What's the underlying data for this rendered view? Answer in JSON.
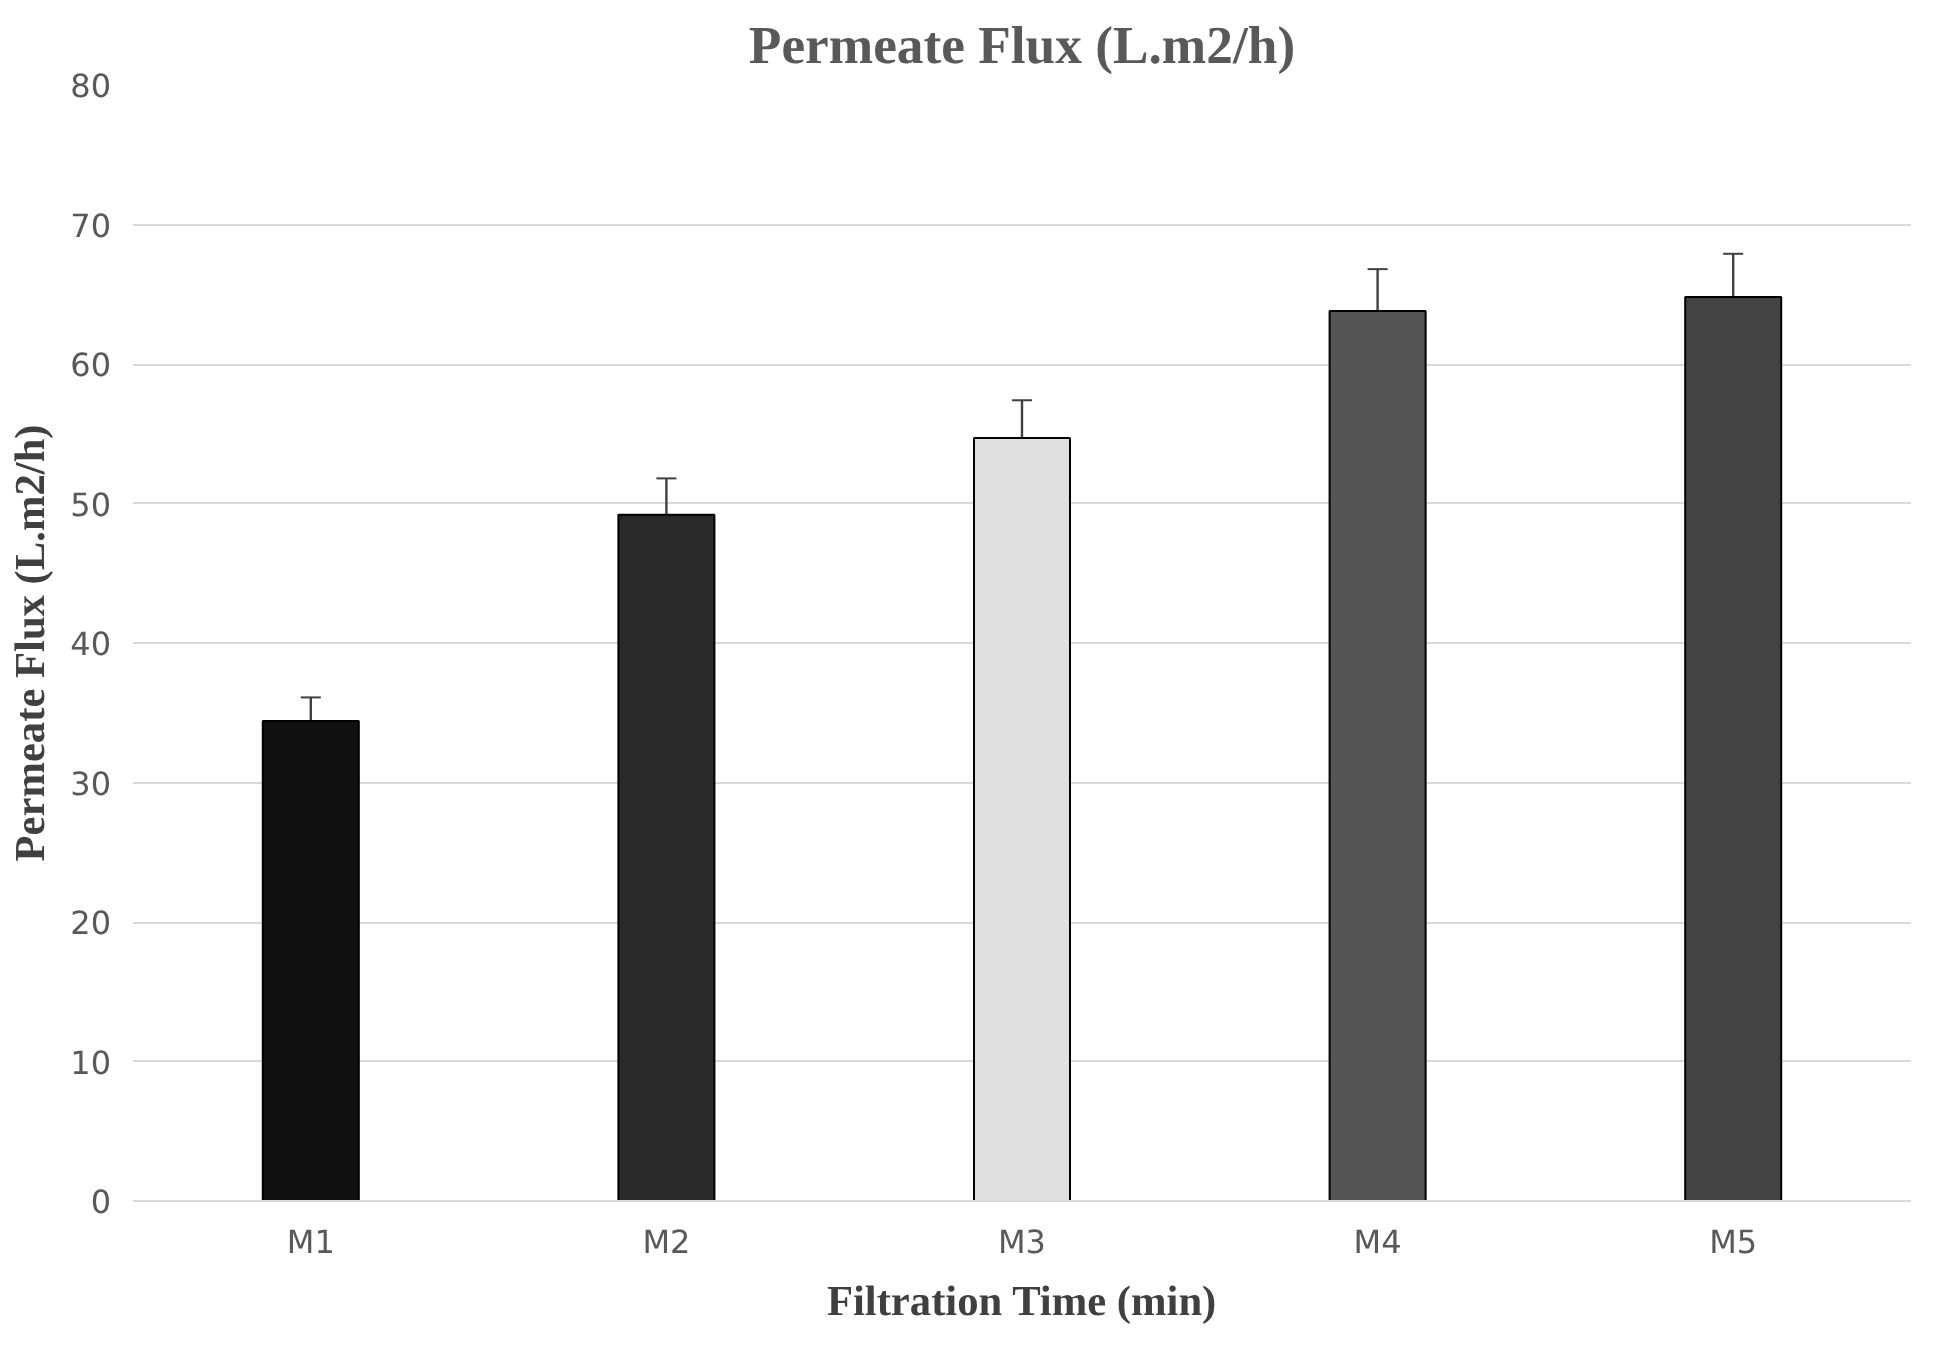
{
  "chart_data": {
    "type": "bar",
    "title": "Permeate Flux (L.m2/h)",
    "xlabel": "Filtration Time (min)",
    "ylabel": "Permeate Flux (L.m2/h)",
    "categories": [
      "M1",
      "M2",
      "M3",
      "M4",
      "M5"
    ],
    "values": [
      34.4,
      49.2,
      54.7,
      63.8,
      64.8
    ],
    "errors": [
      1.7,
      2.6,
      2.7,
      3.0,
      3.1
    ],
    "colors": [
      "#111111",
      "#2a2a2a",
      "#e0e0e0",
      "#555555",
      "#444444"
    ],
    "ylim": [
      0,
      80
    ],
    "yticks": [
      0,
      10,
      20,
      30,
      40,
      50,
      60,
      70,
      80
    ],
    "grid": "y"
  }
}
